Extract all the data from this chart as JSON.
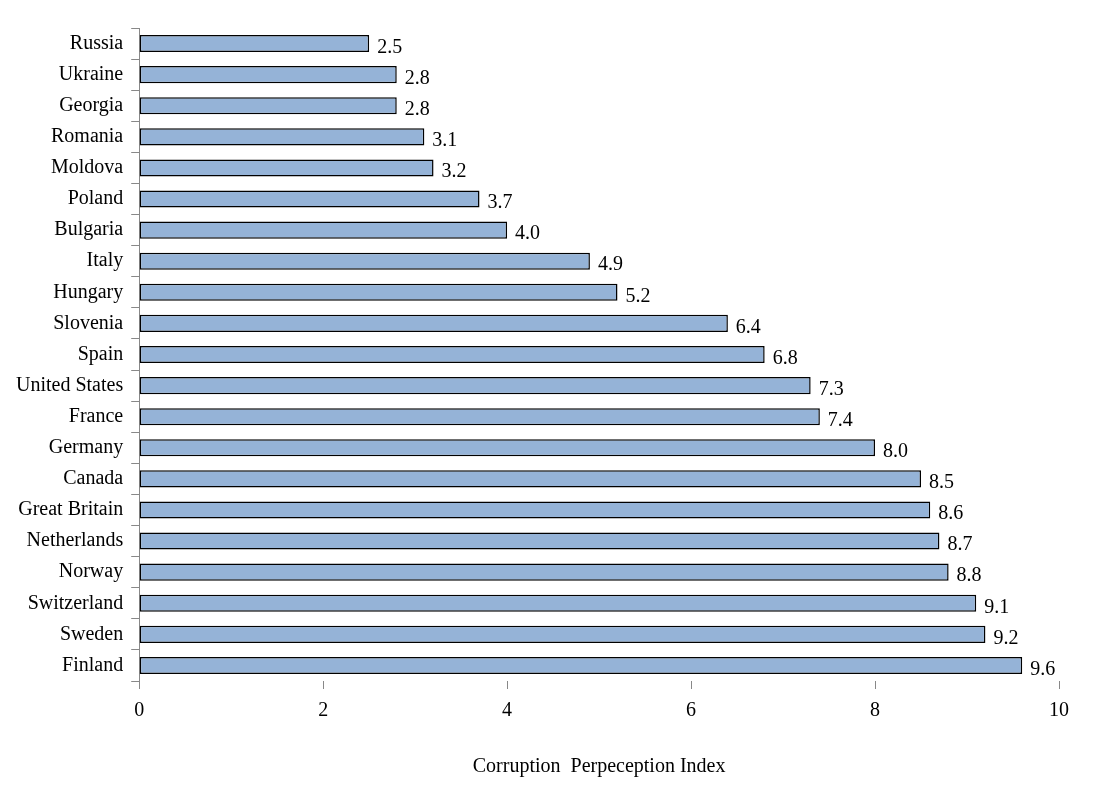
{
  "chart_data": {
    "type": "bar",
    "orientation": "horizontal",
    "xlabel": "Corruption  Perpeception Index",
    "categories": [
      "Russia",
      "Ukraine",
      "Georgia",
      "Romania",
      "Moldova",
      "Poland",
      "Bulgaria",
      "Italy",
      "Hungary",
      "Slovenia",
      "Spain",
      "United States",
      "France",
      "Germany",
      "Canada",
      "Great Britain",
      "Netherlands",
      "Norway",
      "Switzerland",
      "Sweden",
      "Finland"
    ],
    "values": [
      2.5,
      2.8,
      2.8,
      3.1,
      3.2,
      3.7,
      4.0,
      4.9,
      5.2,
      6.4,
      6.8,
      7.3,
      7.4,
      8.0,
      8.5,
      8.6,
      8.7,
      8.8,
      9.1,
      9.2,
      9.6
    ],
    "value_labels": [
      "2.5",
      "2.8",
      "2.8",
      "3.1",
      "3.2",
      "3.7",
      "4.0",
      "4.9",
      "5.2",
      "6.4",
      "6.8",
      "7.3",
      "7.4",
      "8.0",
      "8.5",
      "8.6",
      "8.7",
      "8.8",
      "9.1",
      "9.2",
      "9.6"
    ],
    "color": "#95b3d7",
    "xlim": [
      0,
      10
    ],
    "xticks": [
      0,
      2,
      4,
      6,
      8,
      10
    ],
    "grid": false,
    "legend": false
  }
}
